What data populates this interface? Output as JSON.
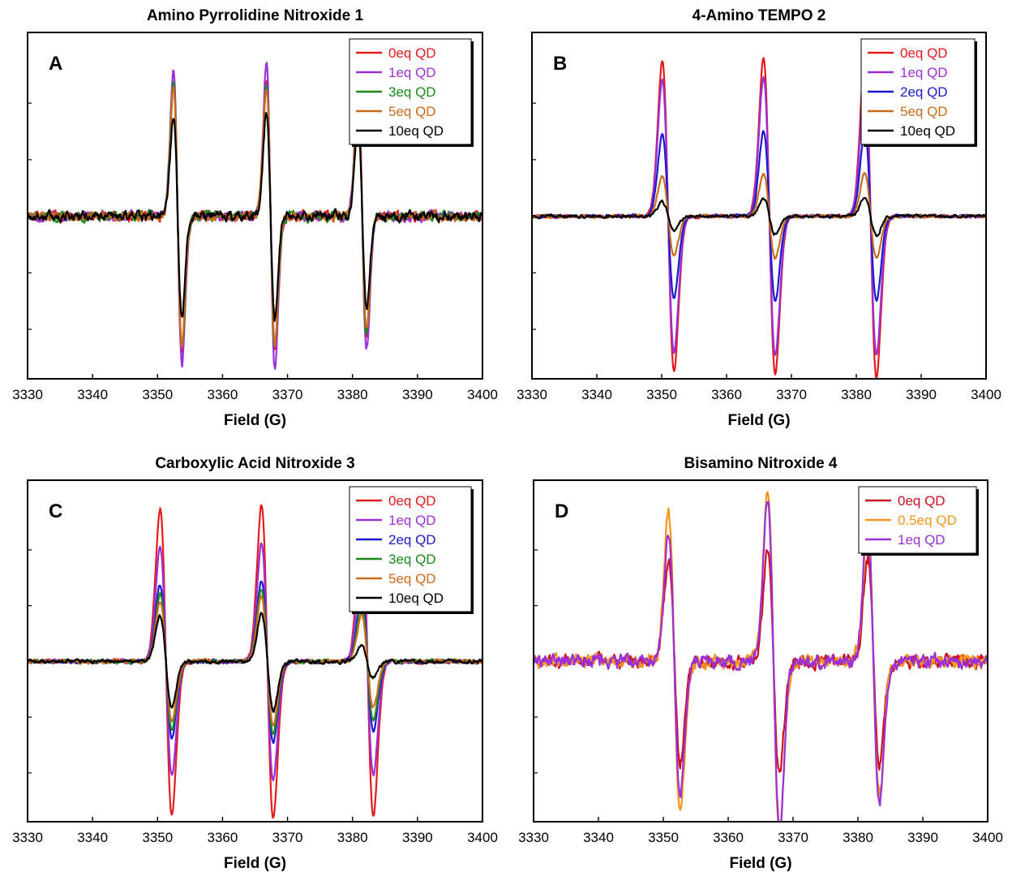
{
  "chart_data": [
    {
      "type": "line",
      "title": "Amino Pyrrolidine Nitroxide 1",
      "panel_label": "A",
      "xlabel": "Field (G)",
      "ylabel": "",
      "xlim": [
        3330,
        3400
      ],
      "x_ticks": [
        3330,
        3340,
        3350,
        3360,
        3370,
        3380,
        3390,
        3400
      ],
      "ylim": [
        -1.15,
        1.3
      ],
      "y_ticks_labeled": false,
      "noise": 0.025,
      "line_centers": [
        3353.1,
        3367.4,
        3381.5
      ],
      "line_halfwidth": 0.65,
      "legend_position": "top-right",
      "series": [
        {
          "name": "0eq QD",
          "color": "#e41a1c",
          "amplitudes": [
            0.95,
            0.95,
            0.85
          ]
        },
        {
          "name": "1eq QD",
          "color": "#9b30d9",
          "amplitudes": [
            1.05,
            1.08,
            0.95
          ]
        },
        {
          "name": "3eq QD",
          "color": "#1a8a1a",
          "amplitudes": [
            0.93,
            0.92,
            0.83
          ]
        },
        {
          "name": "5eq QD",
          "color": "#cc6a1a",
          "amplitudes": [
            0.91,
            0.92,
            0.82
          ]
        },
        {
          "name": "10eq QD",
          "color": "#000000",
          "amplitudes": [
            0.71,
            0.74,
            0.66
          ]
        }
      ]
    },
    {
      "type": "line",
      "title": "4-Amino TEMPO 2",
      "panel_label": "B",
      "xlabel": "Field (G)",
      "ylabel": "",
      "xlim": [
        3330,
        3400
      ],
      "x_ticks": [
        3330,
        3340,
        3350,
        3360,
        3370,
        3380,
        3390,
        3400
      ],
      "ylim": [
        -1.15,
        1.3
      ],
      "y_ticks_labeled": false,
      "noise": 0.008,
      "line_centers": [
        3351.0,
        3366.6,
        3382.2
      ],
      "line_halfwidth": 0.9,
      "legend_position": "top-right",
      "series": [
        {
          "name": "0eq QD",
          "color": "#e41a1c",
          "amplitudes": [
            1.1,
            1.12,
            1.14
          ]
        },
        {
          "name": "1eq QD",
          "color": "#9b30d9",
          "amplitudes": [
            0.96,
            0.98,
            0.98
          ]
        },
        {
          "name": "2eq QD",
          "color": "#1a1acc",
          "amplitudes": [
            0.58,
            0.6,
            0.6
          ]
        },
        {
          "name": "5eq QD",
          "color": "#cc6a1a",
          "amplitudes": [
            0.28,
            0.3,
            0.3
          ]
        },
        {
          "name": "10eq QD",
          "color": "#000000",
          "amplitudes": [
            0.1,
            0.13,
            0.14
          ]
        }
      ]
    },
    {
      "type": "line",
      "title": "Carboxylic Acid Nitroxide 3",
      "panel_label": "C",
      "xlabel": "Field (G)",
      "ylabel": "",
      "xlim": [
        3330,
        3400
      ],
      "x_ticks": [
        3330,
        3340,
        3350,
        3360,
        3370,
        3380,
        3390,
        3400
      ],
      "ylim": [
        -1.15,
        1.3
      ],
      "y_ticks_labeled": false,
      "noise": 0.01,
      "line_centers": [
        3351.3,
        3366.9,
        3382.3
      ],
      "line_halfwidth": 0.9,
      "legend_position": "top-right",
      "series": [
        {
          "name": "0eq QD",
          "color": "#e41a1c",
          "amplitudes": [
            1.1,
            1.12,
            1.1
          ]
        },
        {
          "name": "1eq QD",
          "color": "#9b30d9",
          "amplitudes": [
            0.82,
            0.85,
            0.82
          ]
        },
        {
          "name": "2eq QD",
          "color": "#1a1acc",
          "amplitudes": [
            0.55,
            0.58,
            0.5
          ]
        },
        {
          "name": "3eq QD",
          "color": "#1a8a1a",
          "amplitudes": [
            0.49,
            0.52,
            0.42
          ]
        },
        {
          "name": "5eq QD",
          "color": "#cc6a1a",
          "amplitudes": [
            0.43,
            0.46,
            0.33
          ]
        },
        {
          "name": "10eq QD",
          "color": "#000000",
          "amplitudes": [
            0.33,
            0.35,
            0.12
          ]
        }
      ]
    },
    {
      "type": "line",
      "title": "Bisamino Nitroxide 4",
      "panel_label": "D",
      "xlabel": "Field (G)",
      "ylabel": "",
      "xlim": [
        3330,
        3400
      ],
      "x_ticks": [
        3330,
        3340,
        3350,
        3360,
        3370,
        3380,
        3390,
        3400
      ],
      "ylim": [
        -1.15,
        1.3
      ],
      "y_ticks_labeled": false,
      "noise": 0.035,
      "line_centers": [
        3351.7,
        3367.0,
        3382.4
      ],
      "line_halfwidth": 0.9,
      "legend_position": "top-right",
      "series": [
        {
          "name": "0eq QD",
          "color": "#cc1020",
          "amplitudes": [
            0.72,
            0.81,
            0.72
          ]
        },
        {
          "name": "0.5eq QD",
          "color": "#f7941d",
          "amplitudes": [
            1.08,
            1.25,
            0.98
          ]
        },
        {
          "name": "1eq QD",
          "color": "#9b30d9",
          "amplitudes": [
            0.93,
            1.18,
            1.02
          ]
        }
      ]
    }
  ]
}
